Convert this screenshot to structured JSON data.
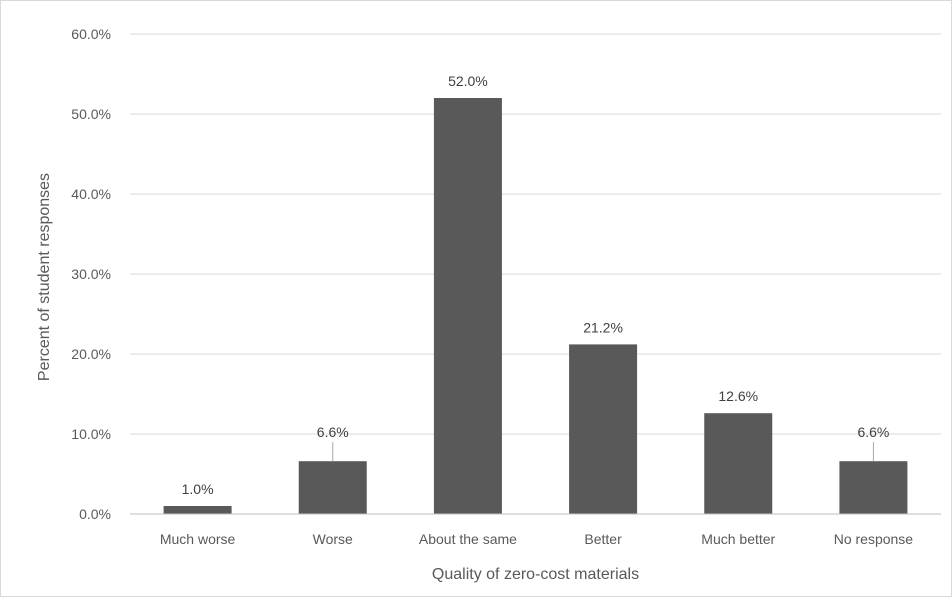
{
  "chart_data": {
    "type": "bar",
    "title": "",
    "xlabel": "Quality of zero-cost materials",
    "ylabel": "Percent of student responses",
    "categories": [
      "Much worse",
      "Worse",
      "About the same",
      "Better",
      "Much better",
      "No response"
    ],
    "values": [
      1.0,
      6.6,
      52.0,
      21.2,
      12.6,
      6.6
    ],
    "value_labels": [
      "1.0%",
      "6.6%",
      "52.0%",
      "21.2%",
      "12.6%",
      "6.6%"
    ],
    "ylim": [
      0,
      60
    ],
    "yticks": [
      0,
      10,
      20,
      30,
      40,
      50,
      60
    ],
    "ytick_labels": [
      "0.0%",
      "10.0%",
      "20.0%",
      "30.0%",
      "40.0%",
      "50.0%",
      "60.0%"
    ],
    "grid": true,
    "legend": "none",
    "colors": {
      "bar": "#595959",
      "gridline": "#d9d9d9",
      "axis": "#bfbfbf",
      "text": "#595959"
    }
  }
}
